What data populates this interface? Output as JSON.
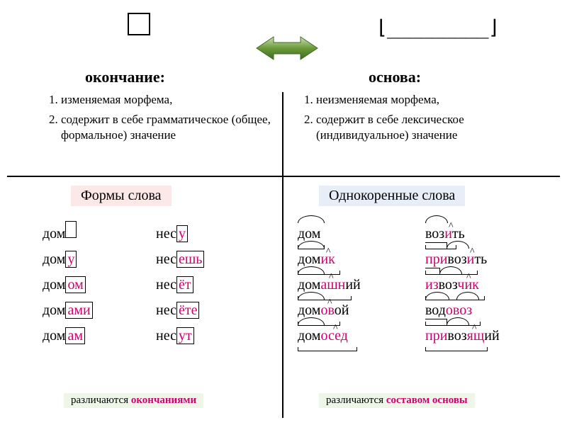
{
  "colors": {
    "highlight": "#d0006f",
    "bg_pink": "#fde8e8",
    "bg_blue": "#e8eef8",
    "bg_green": "#eef6e8",
    "arrow_fill": "#6a9a3a",
    "arrow_stroke": "#3f6b1f"
  },
  "top": {
    "bracket": "⌊_________⌋"
  },
  "left": {
    "heading": "окончание:",
    "list": [
      "изменяемая морфема,",
      "содержит в себе грамматическое (общее, формальное) значение"
    ],
    "section": "Формы слова",
    "colA": [
      [
        {
          "t": "дом",
          "h": false,
          "box": true,
          "boxEmpty": true
        }
      ],
      [
        {
          "t": "дом",
          "h": false
        },
        {
          "t": "у",
          "h": true,
          "box": true
        }
      ],
      [
        {
          "t": "дом",
          "h": false
        },
        {
          "t": "ом",
          "h": true,
          "box": true
        }
      ],
      [
        {
          "t": "дом",
          "h": false
        },
        {
          "t": "ами",
          "h": true,
          "box": true
        }
      ],
      [
        {
          "t": "дом",
          "h": false
        },
        {
          "t": "ам",
          "h": true,
          "box": true
        }
      ]
    ],
    "colB": [
      [
        {
          "t": "нес",
          "h": false
        },
        {
          "t": "у",
          "h": true,
          "box": true
        }
      ],
      [
        {
          "t": "нес",
          "h": false
        },
        {
          "t": "ешь",
          "h": true,
          "box": true
        }
      ],
      [
        {
          "t": "нес",
          "h": false
        },
        {
          "t": "ёт",
          "h": true,
          "box": true
        }
      ],
      [
        {
          "t": "нес",
          "h": false
        },
        {
          "t": "ёте",
          "h": true,
          "box": true
        }
      ],
      [
        {
          "t": "нес",
          "h": false
        },
        {
          "t": "ут",
          "h": true,
          "box": true
        }
      ]
    ],
    "footer_pre": "различаются ",
    "footer_hl": "окончаниями"
  },
  "right": {
    "heading": "основа:",
    "list": [
      "неизменяемая морфема,",
      "содержит в себе лексическое (индивидуальное) значение"
    ],
    "section": "Однокоренные слова",
    "colA": [
      {
        "parts": [
          {
            "t": "дом"
          }
        ],
        "arcs": [
          [
            0,
            36
          ]
        ],
        "base": [
          0,
          36
        ]
      },
      {
        "parts": [
          {
            "t": "дом"
          },
          {
            "t": "ик",
            "h": true
          }
        ],
        "arcs": [
          [
            0,
            36
          ]
        ],
        "hats": [
          [
            40,
            "^"
          ]
        ],
        "base": [
          0,
          58
        ]
      },
      {
        "parts": [
          {
            "t": "дом"
          },
          {
            "t": "ашн",
            "h": true
          },
          {
            "t": "ий"
          }
        ],
        "arcs": [
          [
            0,
            36
          ]
        ],
        "hats": [
          [
            44,
            "^"
          ]
        ],
        "base": [
          0,
          74
        ]
      },
      {
        "parts": [
          {
            "t": "дом"
          },
          {
            "t": "ов",
            "h": true
          },
          {
            "t": "ой"
          }
        ],
        "arcs": [
          [
            0,
            36
          ]
        ],
        "hats": [
          [
            42,
            "^"
          ]
        ],
        "base": [
          0,
          58
        ]
      },
      {
        "parts": [
          {
            "t": "дом"
          },
          {
            "t": "осед",
            "h": true
          }
        ],
        "arcs": [
          [
            0,
            36
          ]
        ],
        "hats": [
          [
            50,
            "^"
          ]
        ],
        "base": [
          0,
          82
        ]
      }
    ],
    "colB": [
      {
        "parts": [
          {
            "t": "воз"
          },
          {
            "t": "и",
            "h": true
          },
          {
            "t": "ть"
          }
        ],
        "arcs": [
          [
            0,
            30
          ]
        ],
        "hats": [
          [
            33,
            "^"
          ]
        ],
        "base": [
          0,
          42
        ]
      },
      {
        "parts": [
          {
            "t": "при",
            "h": true
          },
          {
            "t": "воз"
          },
          {
            "t": "и",
            "h": true
          },
          {
            "t": "ть"
          }
        ],
        "prefs": [
          [
            0,
            30
          ]
        ],
        "arcs": [
          [
            30,
            30
          ]
        ],
        "hats": [
          [
            63,
            "^"
          ]
        ],
        "base": [
          0,
          72
        ]
      },
      {
        "parts": [
          {
            "t": "из",
            "h": true
          },
          {
            "t": "воз"
          },
          {
            "t": "чик",
            "h": true
          }
        ],
        "prefs": [
          [
            0,
            20
          ]
        ],
        "arcs": [
          [
            20,
            30
          ]
        ],
        "hats": [
          [
            58,
            "^"
          ]
        ],
        "base": [
          0,
          82
        ]
      },
      {
        "parts": [
          {
            "t": "вод"
          },
          {
            "t": "о",
            "h": true
          },
          {
            "t": "воз",
            "h": true
          }
        ],
        "arcs": [
          [
            0,
            32
          ],
          [
            44,
            30
          ]
        ],
        "base": [
          0,
          76
        ]
      },
      {
        "parts": [
          {
            "t": "при",
            "h": true
          },
          {
            "t": "воз"
          },
          {
            "t": "ящ",
            "h": true
          },
          {
            "t": "ий"
          }
        ],
        "prefs": [
          [
            0,
            30
          ]
        ],
        "arcs": [
          [
            30,
            30
          ]
        ],
        "hats": [
          [
            66,
            "^"
          ]
        ],
        "base": [
          0,
          86
        ]
      }
    ],
    "footer_pre": "различаются ",
    "footer_hl": "составом основы"
  }
}
